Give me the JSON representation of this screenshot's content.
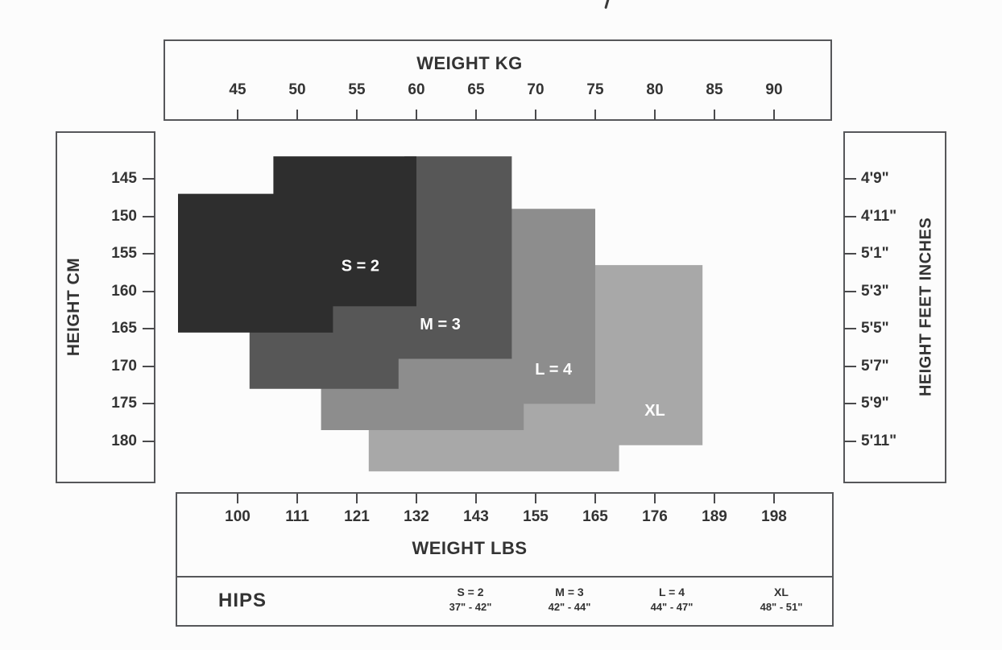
{
  "axes": {
    "top": {
      "title": "WEIGHT KG",
      "ticks": [
        45,
        50,
        55,
        60,
        65,
        70,
        75,
        80,
        85,
        90
      ]
    },
    "bottom": {
      "title": "WEIGHT LBS",
      "ticks": [
        100,
        111,
        121,
        132,
        143,
        155,
        165,
        176,
        189,
        198
      ]
    },
    "left": {
      "title": "HEIGHT CM",
      "ticks": [
        145,
        150,
        155,
        160,
        165,
        170,
        175,
        180
      ]
    },
    "right": {
      "title": "HEIGHT FEET INCHES",
      "ticks": [
        "4'9\"",
        "4'11\"",
        "5'1\"",
        "5'3\"",
        "5'5\"",
        "5'7\"",
        "5'9\"",
        "5'11\""
      ]
    }
  },
  "chart_data": {
    "type": "area",
    "title": "",
    "x_axis": {
      "label": "WEIGHT KG",
      "min": 45,
      "max": 90,
      "unit": "kg"
    },
    "x_axis_secondary": {
      "label": "WEIGHT LBS",
      "ticks_aligned_to_kg": true
    },
    "y_axis": {
      "label": "HEIGHT CM",
      "min": 145,
      "max": 180,
      "unit": "cm",
      "direction": "down"
    },
    "y_axis_secondary": {
      "label": "HEIGHT FEET INCHES"
    },
    "grid": false,
    "series": [
      {
        "name": "XL",
        "color": "#a8a8a8",
        "label_color": "#ffffff",
        "label_at": [
          80,
          176
        ],
        "polygon_kg_cm": [
          [
            74,
            156.5
          ],
          [
            84,
            156.5
          ],
          [
            84,
            180.5
          ],
          [
            77,
            180.5
          ],
          [
            77,
            184
          ],
          [
            56,
            184
          ],
          [
            56,
            170
          ],
          [
            74,
            170
          ]
        ]
      },
      {
        "name": "L = 4",
        "color": "#8d8d8d",
        "label_color": "#ffffff",
        "label_at": [
          71.5,
          170.5
        ],
        "polygon_kg_cm": [
          [
            67,
            149
          ],
          [
            75,
            149
          ],
          [
            75,
            175
          ],
          [
            69,
            175
          ],
          [
            69,
            178.5
          ],
          [
            52,
            178.5
          ],
          [
            52,
            160
          ],
          [
            67,
            160
          ]
        ]
      },
      {
        "name": "M = 3",
        "color": "#575757",
        "label_color": "#ffffff",
        "label_at": [
          62,
          164.5
        ],
        "polygon_kg_cm": [
          [
            59,
            142
          ],
          [
            68,
            142
          ],
          [
            68,
            169
          ],
          [
            58.5,
            169
          ],
          [
            58.5,
            173
          ],
          [
            46,
            173
          ],
          [
            46,
            150
          ],
          [
            59,
            150
          ]
        ]
      },
      {
        "name": "S = 2",
        "color": "#2e2e2e",
        "label_color": "#ffffff",
        "label_at": [
          55.3,
          156.7
        ],
        "polygon_kg_cm": [
          [
            48,
            142
          ],
          [
            60,
            142
          ],
          [
            60,
            162
          ],
          [
            53,
            162
          ],
          [
            53,
            165.5
          ],
          [
            40,
            165.5
          ],
          [
            40,
            147
          ],
          [
            48,
            147
          ]
        ]
      }
    ]
  },
  "hips": {
    "label": "HIPS",
    "columns": [
      {
        "size": "S = 2",
        "range": "37\" - 42\""
      },
      {
        "size": "M = 3",
        "range": "42\" - 44\""
      },
      {
        "size": "L = 4",
        "range": "44\" - 47\""
      },
      {
        "size": "XL",
        "range": "48\" - 51\""
      }
    ]
  },
  "colors": {
    "border": "#56575a",
    "tick": "#4a4a4c",
    "text": "#333333",
    "size_s": "#2e2e2e",
    "size_m": "#575757",
    "size_l": "#8d8d8d",
    "size_xl": "#a8a8a8"
  }
}
